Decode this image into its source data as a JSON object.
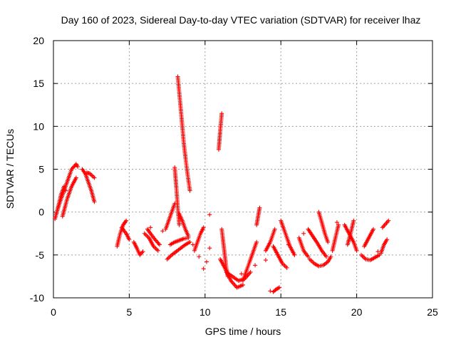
{
  "chart_data": {
    "type": "scatter",
    "title": "Day 160 of 2023, Sidereal Day-to-day VTEC variation (SDTVAR) for receiver lhaz",
    "xlabel": "GPS time / hours",
    "ylabel": "SDTVAR / TECUs",
    "xlim": [
      0,
      25
    ],
    "ylim": [
      -10,
      20
    ],
    "xticks": [
      "0",
      "5",
      "10",
      "15",
      "20",
      "25"
    ],
    "yticks": [
      "-10",
      "-5",
      "0",
      "5",
      "10",
      "15",
      "20"
    ],
    "grid": true,
    "marker": "+",
    "color": "#ff0000",
    "arcs": [
      {
        "name": "arc-01",
        "x": [
          0.1,
          0.3,
          0.5,
          0.7,
          0.8
        ],
        "y": [
          -0.8,
          0.5,
          2.0,
          3.0,
          2.5
        ]
      },
      {
        "name": "arc-02",
        "x": [
          0.3,
          0.6,
          0.9,
          1.2,
          1.5,
          1.6
        ],
        "y": [
          0.5,
          2.0,
          3.5,
          5.0,
          5.6,
          5.3
        ]
      },
      {
        "name": "arc-03",
        "x": [
          0.6,
          0.9,
          1.2,
          1.5
        ],
        "y": [
          -0.5,
          1.5,
          3.0,
          4.0
        ]
      },
      {
        "name": "arc-04",
        "x": [
          1.9,
          2.1,
          2.3,
          2.5,
          2.7
        ],
        "y": [
          5.0,
          4.5,
          3.5,
          2.5,
          1.2
        ]
      },
      {
        "name": "arc-05",
        "x": [
          2.2,
          2.4,
          2.7
        ],
        "y": [
          4.6,
          4.5,
          4.0
        ]
      },
      {
        "name": "arc-06",
        "x": [
          4.2,
          4.4,
          4.6,
          4.8
        ],
        "y": [
          -4.0,
          -2.5,
          -1.5,
          -1.0
        ]
      },
      {
        "name": "arc-07",
        "x": [
          4.5,
          4.8,
          5.0
        ],
        "y": [
          -1.8,
          -2.5,
          -3.2
        ]
      },
      {
        "name": "arc-08",
        "x": [
          5.3,
          5.5,
          5.7,
          5.9
        ],
        "y": [
          -3.5,
          -4.2,
          -5.0,
          -4.6
        ]
      },
      {
        "name": "arc-09",
        "x": [
          6.0,
          6.3,
          6.6,
          6.9
        ],
        "y": [
          -2.5,
          -3.0,
          -4.0,
          -4.5
        ]
      },
      {
        "name": "arc-10",
        "x": [
          6.2,
          6.4,
          6.7,
          7.0
        ],
        "y": [
          -2.0,
          -2.5,
          -3.2,
          -3.8
        ]
      },
      {
        "name": "arc-11",
        "x": [
          7.4,
          7.6,
          7.8,
          8.0
        ],
        "y": [
          -2.0,
          -1.0,
          0.0,
          1.0
        ]
      },
      {
        "name": "arc-12",
        "x": [
          7.5,
          7.8,
          8.1,
          8.4,
          8.7,
          9.0
        ],
        "y": [
          -5.5,
          -5.0,
          -4.6,
          -4.2,
          -3.8,
          -3.5
        ]
      },
      {
        "name": "arc-13",
        "x": [
          7.7,
          8.0,
          8.3,
          8.6,
          8.9
        ],
        "y": [
          -3.8,
          -3.5,
          -3.3,
          -3.1,
          -3.0
        ]
      },
      {
        "name": "arc-14",
        "x": [
          8.0,
          8.1,
          8.2,
          8.3
        ],
        "y": [
          5.2,
          3.0,
          0.5,
          -1.5
        ]
      },
      {
        "name": "arc-15",
        "x": [
          8.3,
          8.5,
          8.7,
          8.9
        ],
        "y": [
          -0.2,
          -1.0,
          -2.0,
          -2.8
        ]
      },
      {
        "name": "arc-16",
        "x": [
          8.2,
          8.4,
          8.6,
          8.8,
          9.0
        ],
        "y": [
          15.8,
          12.0,
          8.0,
          5.0,
          2.5
        ]
      },
      {
        "name": "arc-17",
        "x": [
          9.3,
          9.5,
          9.7,
          9.9
        ],
        "y": [
          -4.5,
          -3.5,
          -2.5,
          -1.8
        ]
      },
      {
        "name": "arc-18",
        "x": [
          10.9,
          11.0,
          11.1
        ],
        "y": [
          7.3,
          9.5,
          11.5
        ]
      },
      {
        "name": "arc-19",
        "x": [
          11.1,
          11.2,
          11.3,
          11.4,
          11.5
        ],
        "y": [
          -2.0,
          -3.5,
          -5.0,
          -6.5,
          -7.5
        ]
      },
      {
        "name": "arc-20",
        "x": [
          11.0,
          11.3,
          11.7,
          12.1,
          12.5
        ],
        "y": [
          -5.5,
          -6.5,
          -8.0,
          -8.8,
          -8.5
        ]
      },
      {
        "name": "arc-21",
        "x": [
          11.4,
          11.8,
          12.2,
          12.6,
          13.0
        ],
        "y": [
          -7.0,
          -7.5,
          -8.0,
          -7.8,
          -7.0
        ]
      },
      {
        "name": "arc-22",
        "x": [
          12.5,
          12.8,
          13.1,
          13.4
        ],
        "y": [
          -8.0,
          -6.5,
          -5.0,
          -3.5
        ]
      },
      {
        "name": "arc-23",
        "x": [
          13.4,
          13.5,
          13.6
        ],
        "y": [
          -1.5,
          -0.5,
          0.5
        ]
      },
      {
        "name": "arc-24",
        "x": [
          14.0,
          14.3,
          14.6
        ],
        "y": [
          -4.5,
          -3.5,
          -2.0
        ]
      },
      {
        "name": "arc-25",
        "x": [
          14.5,
          14.8,
          15.1,
          15.4
        ],
        "y": [
          -4.0,
          -5.0,
          -6.0,
          -6.5
        ]
      },
      {
        "name": "arc-26",
        "x": [
          14.5,
          14.7,
          14.9
        ],
        "y": [
          -9.3,
          -9.0,
          -8.8
        ]
      },
      {
        "name": "arc-27",
        "x": [
          15.0,
          15.3,
          15.6,
          15.9
        ],
        "y": [
          -1.0,
          -2.5,
          -4.0,
          -5.0
        ]
      },
      {
        "name": "arc-28",
        "x": [
          16.2,
          16.5,
          16.8
        ],
        "y": [
          -3.0,
          -4.5,
          -5.2
        ]
      },
      {
        "name": "arc-29",
        "x": [
          16.8,
          17.1,
          17.4,
          17.7,
          18.0
        ],
        "y": [
          -2.0,
          -2.8,
          -3.6,
          -4.5,
          -5.2
        ]
      },
      {
        "name": "arc-30",
        "x": [
          17.5,
          17.7,
          17.9,
          18.1
        ],
        "y": [
          0.0,
          -1.2,
          -2.5,
          -3.5
        ]
      },
      {
        "name": "arc-31",
        "x": [
          16.9,
          17.2,
          17.5,
          17.8,
          18.1,
          18.3
        ],
        "y": [
          -5.5,
          -6.0,
          -6.3,
          -6.2,
          -5.8,
          -5.2
        ]
      },
      {
        "name": "arc-32",
        "x": [
          18.4,
          18.6,
          18.8
        ],
        "y": [
          -4.5,
          -3.0,
          -1.5
        ]
      },
      {
        "name": "arc-33",
        "x": [
          19.2,
          19.5,
          19.8,
          20.0
        ],
        "y": [
          -1.5,
          -2.5,
          -3.5,
          -4.5
        ]
      },
      {
        "name": "arc-34",
        "x": [
          19.4,
          19.6,
          19.8
        ],
        "y": [
          -3.8,
          -2.5,
          -1.0
        ]
      },
      {
        "name": "arc-35",
        "x": [
          20.3,
          20.6,
          20.9,
          21.2,
          21.5
        ],
        "y": [
          -5.0,
          -5.5,
          -5.6,
          -5.3,
          -5.0
        ]
      },
      {
        "name": "arc-36",
        "x": [
          20.5,
          20.8,
          21.1
        ],
        "y": [
          -4.0,
          -3.0,
          -2.0
        ]
      },
      {
        "name": "arc-37",
        "x": [
          21.6,
          21.8,
          22.0
        ],
        "y": [
          -4.8,
          -3.8,
          -3.2
        ]
      },
      {
        "name": "arc-38",
        "x": [
          21.7,
          21.9,
          22.1
        ],
        "y": [
          -1.8,
          -1.4,
          -1.0
        ]
      }
    ],
    "isolated_points": [
      {
        "x": 6.4,
        "y": -1.8
      },
      {
        "x": 7.2,
        "y": -2.2
      },
      {
        "x": 9.2,
        "y": -3.8
      },
      {
        "x": 9.6,
        "y": -5.2
      },
      {
        "x": 9.9,
        "y": -6.6
      },
      {
        "x": 10.1,
        "y": -5.8
      },
      {
        "x": 10.3,
        "y": -0.3
      },
      {
        "x": 10.3,
        "y": -4.2
      },
      {
        "x": 12.4,
        "y": -7.2
      },
      {
        "x": 13.3,
        "y": -6.2
      },
      {
        "x": 14.0,
        "y": -5.6
      },
      {
        "x": 14.3,
        "y": -9.2
      },
      {
        "x": 15.5,
        "y": -3.8
      },
      {
        "x": 16.5,
        "y": -2.5
      },
      {
        "x": 18.7,
        "y": -1.2
      },
      {
        "x": 21.4,
        "y": -4.6
      }
    ]
  }
}
